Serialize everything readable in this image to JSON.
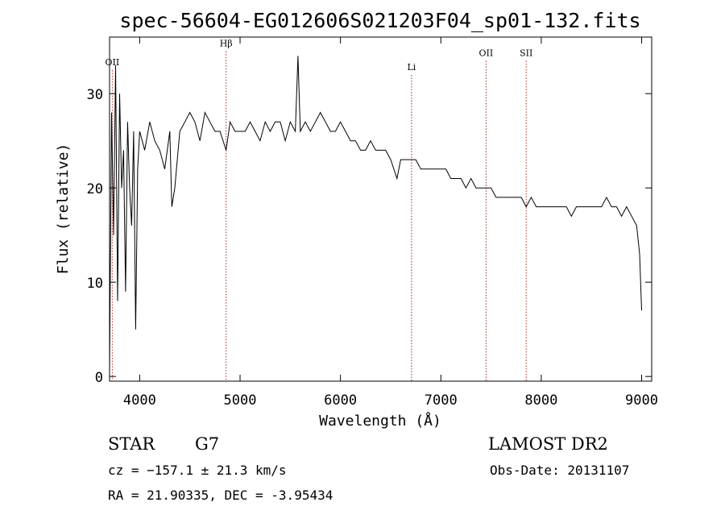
{
  "chart_data": {
    "type": "line",
    "title": "spec-56604-EG012606S021203F04_sp01-132.fits",
    "xlabel": "Wavelength (Å)",
    "ylabel": "Flux (relative)",
    "xlim": [
      3700,
      9100
    ],
    "ylim": [
      -0.5,
      36
    ],
    "x_ticks": [
      4000,
      5000,
      6000,
      7000,
      8000,
      9000
    ],
    "y_ticks": [
      0,
      10,
      20,
      30
    ],
    "grid": false,
    "line_color": "#000000",
    "marker_color": "#aa2222",
    "series": [
      {
        "x": [
          3700,
          3720,
          3740,
          3760,
          3780,
          3800,
          3820,
          3840,
          3860,
          3880,
          3900,
          3920,
          3940,
          3960,
          3980,
          4000,
          4050,
          4100,
          4150,
          4200,
          4250,
          4300,
          4320,
          4350,
          4400,
          4450,
          4500,
          4550,
          4600,
          4650,
          4700,
          4750,
          4800,
          4861,
          4900,
          4950,
          5000,
          5050,
          5100,
          5150,
          5200,
          5250,
          5300,
          5350,
          5400,
          5450,
          5500,
          5550,
          5577,
          5600,
          5650,
          5700,
          5750,
          5800,
          5850,
          5900,
          5950,
          6000,
          6050,
          6100,
          6150,
          6200,
          6250,
          6300,
          6350,
          6400,
          6450,
          6500,
          6563,
          6600,
          6650,
          6700,
          6750,
          6800,
          6850,
          6900,
          6950,
          7000,
          7050,
          7100,
          7150,
          7200,
          7250,
          7300,
          7350,
          7400,
          7450,
          7500,
          7550,
          7600,
          7650,
          7700,
          7750,
          7800,
          7850,
          7900,
          7950,
          8000,
          8050,
          8100,
          8150,
          8200,
          8250,
          8300,
          8350,
          8400,
          8450,
          8500,
          8550,
          8600,
          8650,
          8700,
          8750,
          8800,
          8850,
          8900,
          8950,
          8980,
          9000
        ],
        "values": [
          0.5,
          28,
          15,
          33,
          8,
          30,
          20,
          24,
          9,
          27,
          20,
          16,
          26,
          5,
          22,
          26,
          24,
          27,
          25,
          24,
          22,
          26,
          18,
          20,
          26,
          27,
          28,
          27,
          25,
          28,
          27,
          26,
          26,
          24,
          27,
          26,
          26,
          26,
          27,
          26,
          25,
          27,
          26,
          27,
          27,
          25,
          27,
          26,
          34,
          26,
          27,
          26,
          27,
          28,
          27,
          26,
          26,
          27,
          26,
          25,
          25,
          24,
          24,
          25,
          24,
          24,
          24,
          23,
          21,
          23,
          23,
          23,
          23,
          22,
          22,
          22,
          22,
          22,
          22,
          21,
          21,
          21,
          20,
          21,
          20,
          20,
          20,
          20,
          19,
          19,
          19,
          19,
          19,
          19,
          18,
          19,
          18,
          18,
          18,
          18,
          18,
          18,
          18,
          17,
          18,
          18,
          18,
          18,
          18,
          18,
          19,
          18,
          18,
          17,
          18,
          17,
          16,
          13,
          7
        ]
      }
    ],
    "line_markers": [
      {
        "label": "OII",
        "x": 3727,
        "label_y": 33
      },
      {
        "label": "Hβ",
        "x": 4861,
        "label_y": 35
      },
      {
        "label": "Li",
        "x": 6708,
        "label_y": 32.5
      },
      {
        "label": "OII",
        "x": 7450,
        "label_y": 34
      },
      {
        "label": "SII",
        "x": 7850,
        "label_y": 34
      }
    ]
  },
  "info": {
    "object_class": "STAR",
    "subclass": "G7",
    "survey": "LAMOST DR2",
    "redshift_line": "cz = −157.1 ± 21.3 km/s",
    "obs_date": "Obs-Date: 20131107",
    "coords": "RA =  21.90335, DEC =  -3.95434"
  }
}
